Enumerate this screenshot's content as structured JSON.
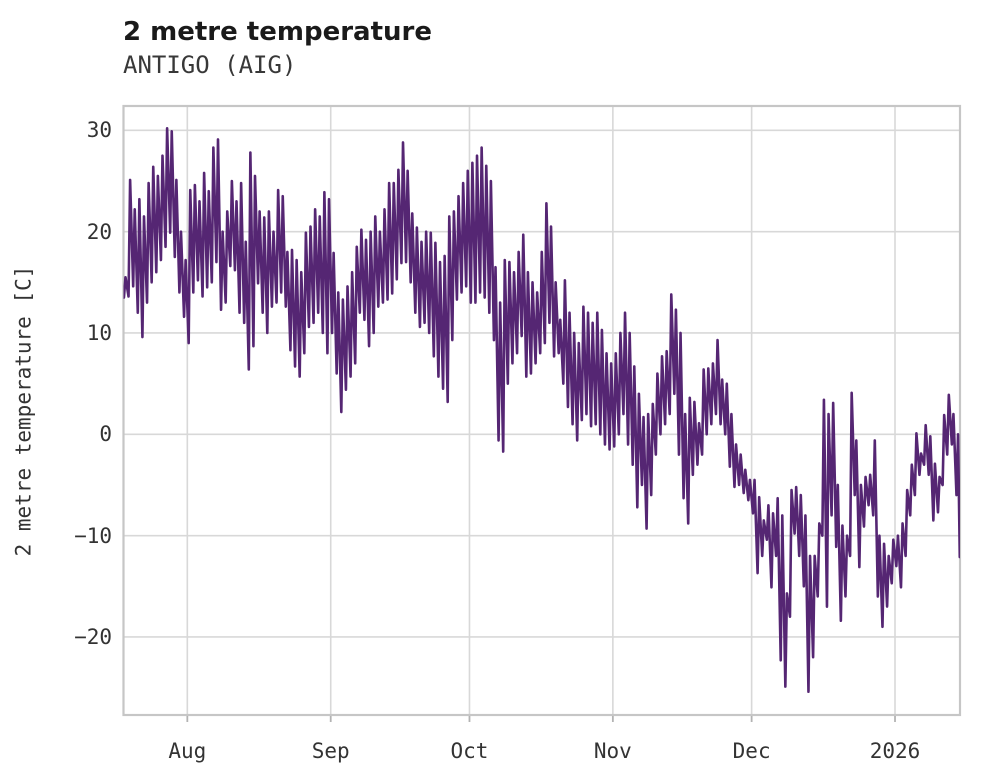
{
  "header": {
    "title": "2 metre temperature",
    "subtitle": "ANTIGO (AIG)"
  },
  "chart_data": {
    "type": "line",
    "title": "2 metre temperature",
    "subtitle": "ANTIGO (AIG)",
    "xlabel": "",
    "ylabel": "2 metre temperature [C]",
    "legend": null,
    "grid": true,
    "x_axis": {
      "kind": "date",
      "day0_date": "2025-07-18",
      "xlim_days": [
        0.2,
        181.05
      ],
      "tick_days": [
        14,
        45,
        75,
        106,
        136,
        167
      ],
      "tick_labels": [
        "Aug",
        "Sep",
        "Oct",
        "Nov",
        "Dec",
        "2026"
      ]
    },
    "y_axis": {
      "ticks": [
        30,
        20,
        10,
        0,
        -10,
        -20
      ],
      "tick_labels": [
        "30",
        "20",
        "10",
        "0",
        "−10",
        "−20"
      ],
      "ylim": [
        -27.7,
        32.4
      ]
    },
    "style": {
      "line_color": "#552673",
      "line_width": 2.6,
      "grid_color": "#d8d8d8",
      "spine_color": "#c6c6c6",
      "tick_mark_color": "#b3b3b3",
      "text_color": "#333333",
      "title_color": "#1a1a1a",
      "background": "#ffffff"
    },
    "series": [
      {
        "name": "2 metre temperature",
        "unit": "C",
        "station": "ANTIGO (AIG)",
        "sampling": "approx twice-daily extremes read from plot, day index from 2025-07-18",
        "low_time_frac": 0.29,
        "high_time_frac": 0.63,
        "lows": [
          13.5,
          13.6,
          14.6,
          12.0,
          9.6,
          13.0,
          15.0,
          16.0,
          17.2,
          18.5,
          19.9,
          17.5,
          14.0,
          11.6,
          9.0,
          14.0,
          15.2,
          13.6,
          14.5,
          15.0,
          17.0,
          12.3,
          13.0,
          16.6,
          16.2,
          12.0,
          11.0,
          6.4,
          8.7,
          14.9,
          12.0,
          10.0,
          12.6,
          13.0,
          14.0,
          12.6,
          8.3,
          6.7,
          5.7,
          8.0,
          10.6,
          11.0,
          12.0,
          10.0,
          8.0,
          10.0,
          6.0,
          2.2,
          4.4,
          5.7,
          7.0,
          12.0,
          11.3,
          8.7,
          10.0,
          12.6,
          13.0,
          13.3,
          13.9,
          15.3,
          16.9,
          17.0,
          15.0,
          12.0,
          10.6,
          11.0,
          10.0,
          7.7,
          5.7,
          4.5,
          3.2,
          9.3,
          13.3,
          14.0,
          14.6,
          13.0,
          13.0,
          14.0,
          13.5,
          12.0,
          9.3,
          -0.6,
          -1.7,
          5.0,
          7.0,
          8.0,
          9.7,
          5.7,
          6.0,
          7.0,
          8.0,
          9.0,
          11.0,
          7.7,
          8.0,
          5.0,
          2.7,
          1.0,
          -0.6,
          1.4,
          2.0,
          0.8,
          1.0,
          0.0,
          -1.0,
          -1.5,
          -1.2,
          0.0,
          2.0,
          -1.0,
          -3.0,
          -7.2,
          -5.0,
          -9.3,
          -6.0,
          -2.0,
          0.0,
          1.0,
          2.0,
          4.0,
          -2.0,
          -6.3,
          -8.8,
          -4.0,
          -3.0,
          -2.0,
          0.0,
          1.0,
          2.0,
          1.0,
          0.0,
          -3.2,
          -5.2,
          -5.0,
          -5.8,
          -6.5,
          -7.8,
          -13.7,
          -12.0,
          -10.4,
          -15.1,
          -12.0,
          -22.3,
          -24.9,
          -18.0,
          -9.8,
          -12.0,
          -15.0,
          -25.4,
          -22.0,
          -16.0,
          -10.0,
          -17.0,
          -8.0,
          -11.1,
          -18.4,
          -16.0,
          -12.0,
          -6.0,
          -13.1,
          -9.1,
          -7.0,
          -8.0,
          -16.0,
          -19.0,
          -17.0,
          -14.7,
          -13.0,
          -15.1,
          -12.0,
          -8.0,
          -6.0,
          -4.0,
          -3.0,
          -4.0,
          -8.5,
          -7.7,
          -5.0,
          -2.0,
          -1.0,
          -6.0
        ],
        "highs": [
          15.5,
          25.1,
          22.2,
          23.2,
          21.5,
          24.8,
          26.4,
          25.5,
          27.5,
          30.2,
          29.9,
          25.1,
          20.0,
          17.2,
          24.1,
          24.6,
          23.0,
          25.8,
          24.0,
          28.3,
          29.1,
          20.0,
          22.0,
          25.0,
          23.0,
          24.8,
          19.0,
          27.8,
          25.5,
          22.0,
          21.4,
          22.0,
          20.0,
          24.1,
          23.5,
          18.0,
          18.2,
          17.2,
          16.0,
          19.9,
          20.5,
          22.2,
          21.5,
          23.9,
          23.2,
          17.9,
          14.0,
          13.3,
          14.6,
          16.0,
          18.5,
          20.2,
          19.2,
          20.0,
          21.5,
          20.0,
          22.2,
          24.8,
          24.8,
          26.1,
          28.8,
          26.0,
          21.8,
          20.4,
          19.0,
          20.0,
          19.9,
          18.9,
          17.0,
          17.6,
          21.5,
          22.0,
          23.5,
          24.8,
          26.0,
          26.8,
          27.5,
          28.3,
          26.5,
          25.0,
          16.5,
          13.0,
          17.2,
          17.0,
          16.0,
          18.0,
          19.7,
          16.0,
          15.0,
          14.0,
          18.0,
          22.8,
          20.5,
          15.0,
          11.3,
          15.2,
          12.0,
          10.0,
          9.0,
          12.6,
          12.0,
          11.0,
          12.0,
          10.3,
          8.0,
          7.0,
          8.0,
          10.0,
          12.0,
          10.0,
          6.7,
          4.0,
          1.7,
          2.0,
          3.0,
          6.0,
          7.7,
          8.2,
          13.8,
          12.3,
          10.0,
          2.0,
          3.6,
          3.2,
          1.1,
          6.4,
          6.5,
          7.0,
          9.3,
          5.4,
          5.0,
          2.0,
          -1.0,
          -2.0,
          -3.5,
          -4.5,
          -4.5,
          -6.2,
          -8.5,
          -7.0,
          -7.8,
          -6.3,
          -8.0,
          -15.7,
          -5.5,
          -5.2,
          -6.0,
          -8.0,
          -12.0,
          -12.0,
          -8.8,
          3.4,
          2.0,
          3.1,
          -5.0,
          -9.0,
          -10.0,
          4.1,
          -0.6,
          -5.0,
          -4.2,
          -4.0,
          -0.6,
          -10.0,
          -10.8,
          -12.0,
          -10.4,
          -10.0,
          -8.8,
          -5.5,
          -3.0,
          0.1,
          -1.9,
          0.9,
          -0.2,
          -2.9,
          -4.2,
          1.9,
          3.9,
          2.0,
          0.0
        ],
        "end_day": 181.0,
        "end_value": -12.1
      }
    ]
  }
}
